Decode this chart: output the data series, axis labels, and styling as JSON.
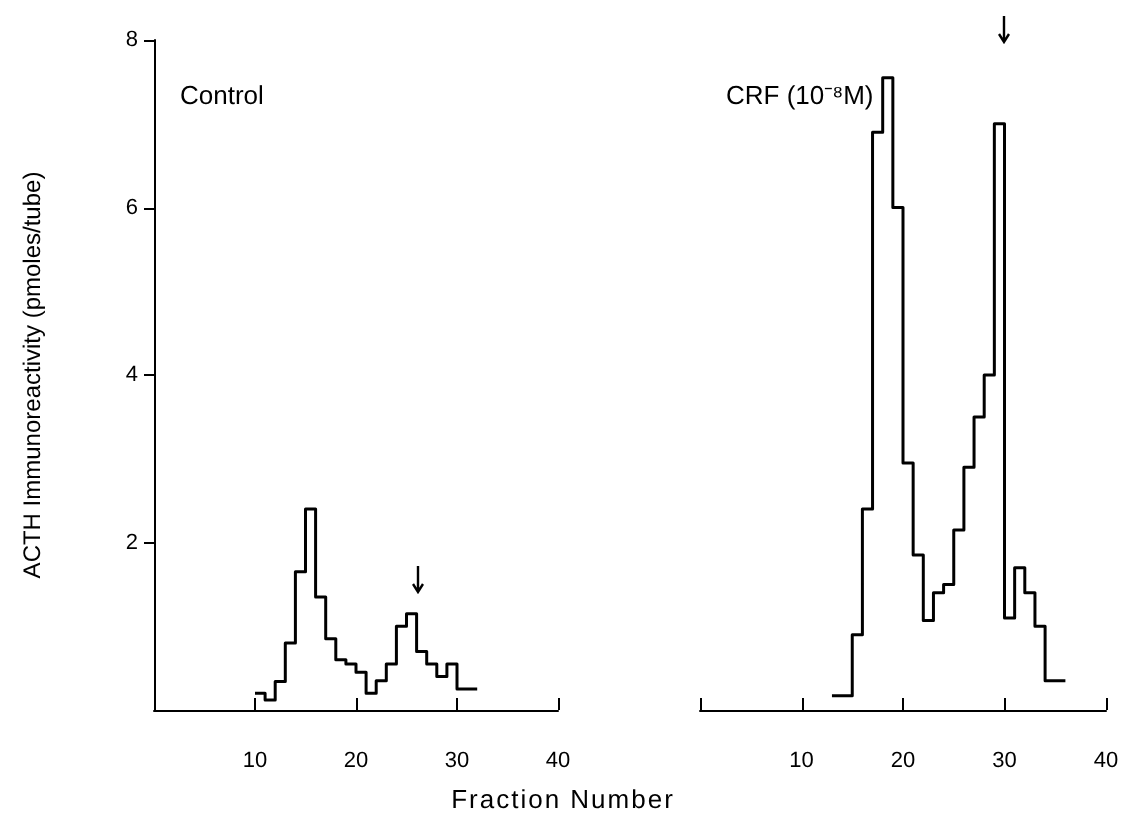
{
  "chart_data": [
    {
      "type": "histogram",
      "title": "Control",
      "ylabel": "ACTH Immunoreactivity (pmoles/tube)",
      "xlabel": "Fraction Number",
      "bins": [
        10,
        11,
        12,
        13,
        14,
        15,
        16,
        17,
        18,
        19,
        20,
        21,
        22,
        23,
        24,
        25,
        26,
        27,
        28,
        29,
        30,
        31,
        32
      ],
      "values": [
        0.2,
        0.12,
        0.34,
        0.8,
        1.65,
        2.4,
        1.35,
        0.85,
        0.6,
        0.55,
        0.45,
        0.2,
        0.35,
        0.55,
        1.0,
        1.15,
        0.7,
        0.55,
        0.4,
        0.55,
        0.25,
        0.25
      ],
      "color": "#000000",
      "xlim": [
        0,
        40
      ],
      "xticks": [
        {
          "value": 0,
          "label": null
        },
        10,
        20,
        30,
        40
      ],
      "ylim": [
        0,
        8
      ],
      "yticks": [
        2,
        4,
        6,
        8
      ]
    },
    {
      "type": "histogram",
      "title": "CRF (10⁻⁸M)",
      "bins": [
        13,
        14,
        15,
        16,
        17,
        18,
        19,
        20,
        21,
        22,
        23,
        24,
        25,
        26,
        27,
        28,
        29,
        30,
        31,
        32,
        33,
        34,
        35,
        36
      ],
      "values": [
        0.17,
        0.17,
        0.9,
        2.4,
        6.9,
        7.55,
        6.0,
        2.95,
        1.85,
        1.07,
        1.4,
        1.5,
        2.15,
        2.9,
        3.5,
        4.0,
        7.0,
        1.1,
        1.7,
        1.4,
        1.0,
        0.35,
        0.35
      ],
      "color": "#000000",
      "xlim": [
        0,
        40
      ],
      "xticks": [
        {
          "value": 0,
          "label": null
        },
        10,
        20,
        30,
        40
      ],
      "ylim": [
        0,
        8
      ],
      "tick_labels": "x"
    }
  ]
}
